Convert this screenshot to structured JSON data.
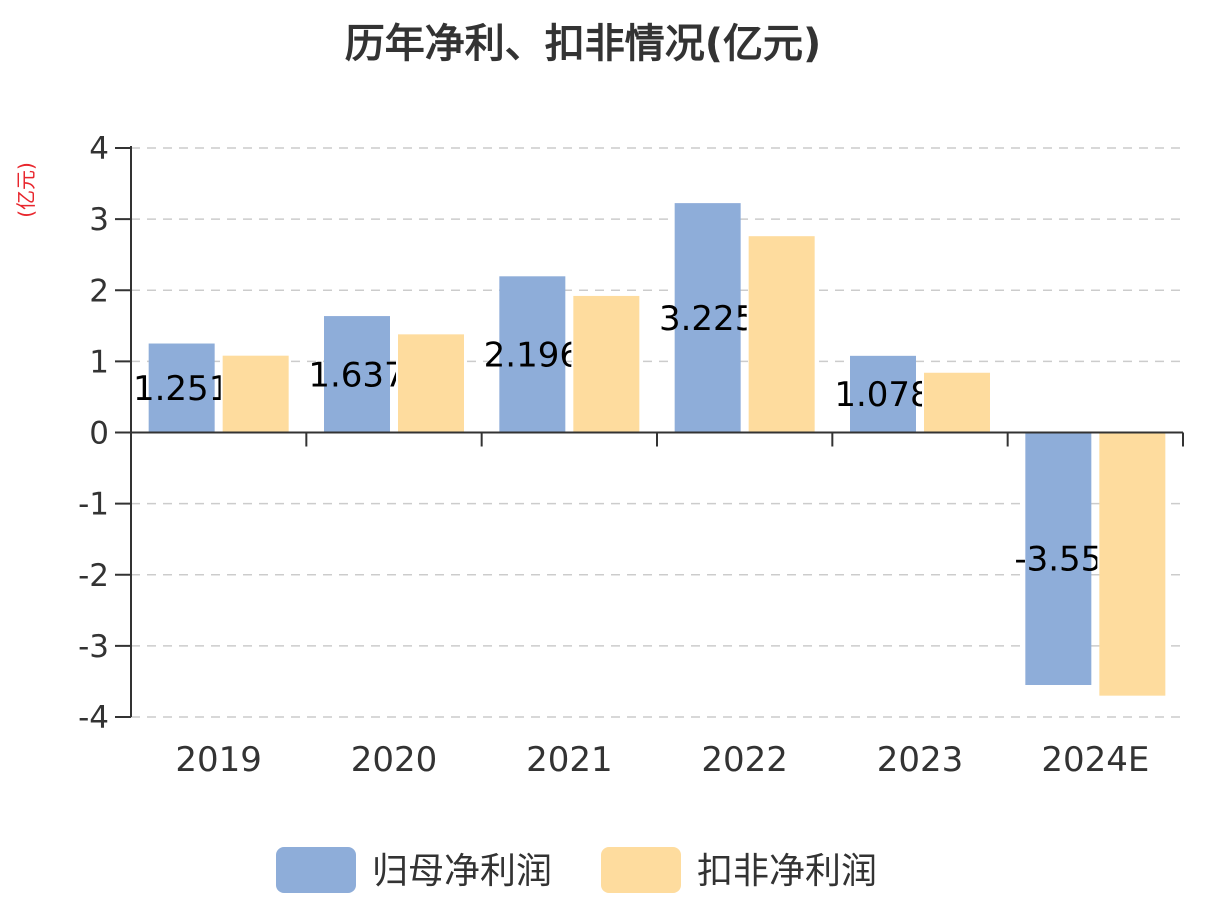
{
  "chart_data": {
    "type": "bar",
    "title": "历年净利、扣非情况(亿元)",
    "ylabel": "(亿元)",
    "xlabel": "",
    "categories": [
      "2019",
      "2020",
      "2021",
      "2022",
      "2023",
      "2024E"
    ],
    "ylim": [
      -4,
      4
    ],
    "yticks": [
      4,
      3,
      2,
      1,
      0,
      -1,
      -2,
      -3,
      -4
    ],
    "grid": true,
    "legend_position": "bottom",
    "series": [
      {
        "name": "归母净利润",
        "color": "#8eadd9",
        "values": [
          1.251,
          1.637,
          2.196,
          3.225,
          1.078,
          -3.55
        ],
        "labels": [
          "1.251",
          "1.637",
          "2.196",
          "3.225",
          "1.078",
          "-3.55"
        ]
      },
      {
        "name": "扣非净利润",
        "color": "#fedc9e",
        "values": [
          1.08,
          1.38,
          1.92,
          2.76,
          0.84,
          -3.7
        ]
      }
    ]
  }
}
